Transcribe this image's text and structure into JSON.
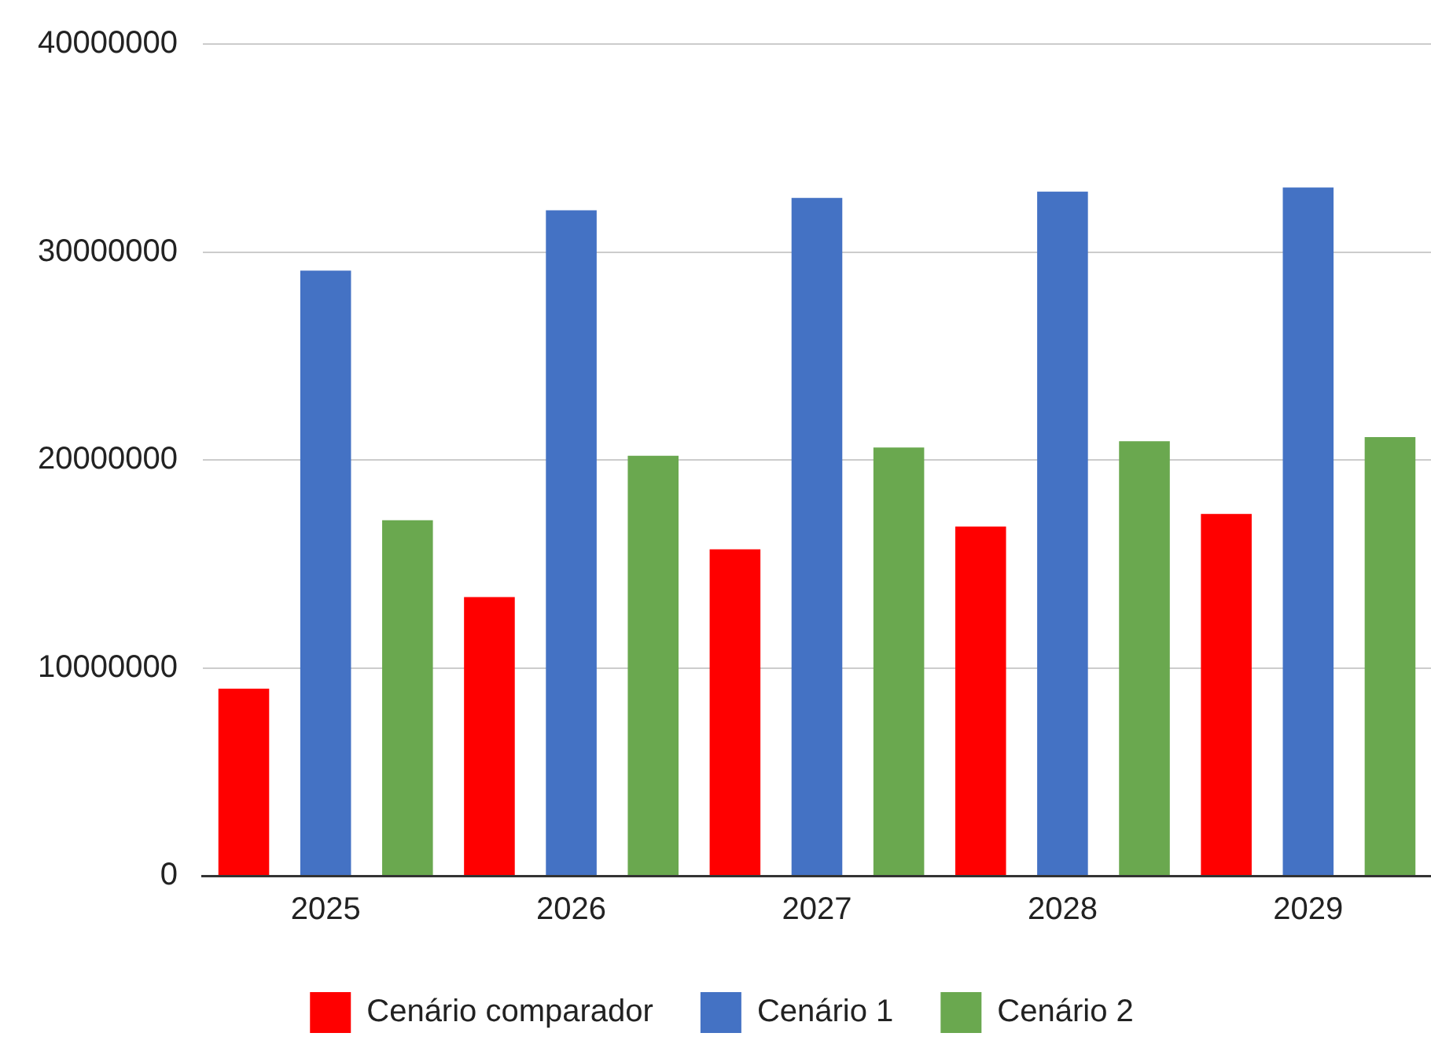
{
  "chart_data": {
    "type": "bar",
    "categories": [
      "2025",
      "2026",
      "2027",
      "2028",
      "2029"
    ],
    "series": [
      {
        "name": "Cenário comparador",
        "color": "#ff0000",
        "values": [
          9000000,
          13400000,
          15700000,
          16800000,
          17400000
        ]
      },
      {
        "name": "Cenário 1",
        "color": "#4472c4",
        "values": [
          29100000,
          32000000,
          32600000,
          32900000,
          33100000
        ]
      },
      {
        "name": "Cenário 2",
        "color": "#6aa84f",
        "values": [
          17100000,
          20200000,
          20600000,
          20900000,
          21100000
        ]
      }
    ],
    "ylim": [
      0,
      40000000
    ],
    "yticks": [
      0,
      10000000,
      20000000,
      30000000,
      40000000
    ],
    "grid": "y",
    "legend": "bottom"
  }
}
